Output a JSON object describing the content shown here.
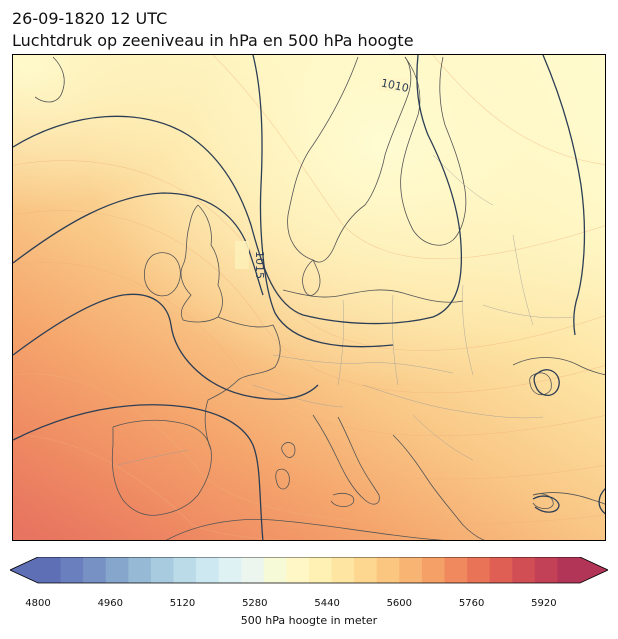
{
  "title": {
    "line1": "26-09-1820 12 UTC",
    "line2": "Luchtdruk op zeeniveau in hPa en 500 hPa hoogte"
  },
  "map": {
    "isobar_labels": [
      "1010",
      "1015"
    ],
    "isobar_color": "#2c3e55",
    "coastline_color": "#555555",
    "border_color": "#9a9a9a"
  },
  "colorbar": {
    "label": "500 hPa hoogte in meter",
    "tick_labels": [
      "4800",
      "4960",
      "5120",
      "5280",
      "5440",
      "5600",
      "5760",
      "5920"
    ],
    "min": 4800,
    "max": 6000,
    "step": 40,
    "extend": "both",
    "colormap": "RdYlBu_r",
    "colors": [
      "#5e6fb6",
      "#6a7fbd",
      "#7791c5",
      "#86a6cc",
      "#96b9d5",
      "#a8cbe0",
      "#bbdbe9",
      "#cde8f1",
      "#def1f3",
      "#ecf6ee",
      "#f7fad7",
      "#fff8c6",
      "#fff0b4",
      "#fee5a1",
      "#fdd68f",
      "#fbc680",
      "#f8b473",
      "#f5a067",
      "#f08a5e",
      "#e97357",
      "#e05f54",
      "#d24e55",
      "#c34157",
      "#b23558"
    ]
  }
}
